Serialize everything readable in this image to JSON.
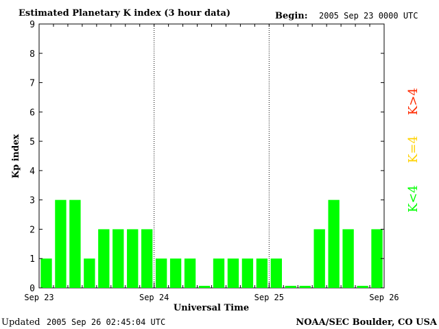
{
  "header": {
    "title": "Estimated Planetary K index (3 hour data)",
    "begin_label": "Begin:",
    "begin_value": "2005 Sep 23 0000 UTC"
  },
  "footer": {
    "updated_label": "Updated",
    "updated_value": "2005 Sep 26 02:45:04 UTC",
    "source": "NOAA/SEC Boulder, CO USA"
  },
  "legend": [
    {
      "label": "K>4",
      "color": "#ff2a00"
    },
    {
      "label": "K=4",
      "color": "#ffd200"
    },
    {
      "label": "K<4",
      "color": "#00ff00"
    }
  ],
  "chart_data": {
    "type": "bar",
    "title": "Estimated Planetary K index (3 hour data)",
    "xlabel": "Universal Time",
    "ylabel": "Kp index",
    "ylim": [
      0,
      9
    ],
    "yticks": [
      0,
      1,
      2,
      3,
      4,
      5,
      6,
      7,
      8,
      9
    ],
    "xticks": [
      "Sep 23",
      "Sep 24",
      "Sep 25",
      "Sep 26"
    ],
    "values": [
      1,
      3,
      3,
      1,
      2,
      2,
      2,
      2,
      1,
      1,
      1,
      0,
      1,
      1,
      1,
      1,
      1,
      0,
      0,
      2,
      3,
      2,
      0,
      2
    ],
    "bar_color": "#00ff00",
    "day_separators": "dotted"
  }
}
